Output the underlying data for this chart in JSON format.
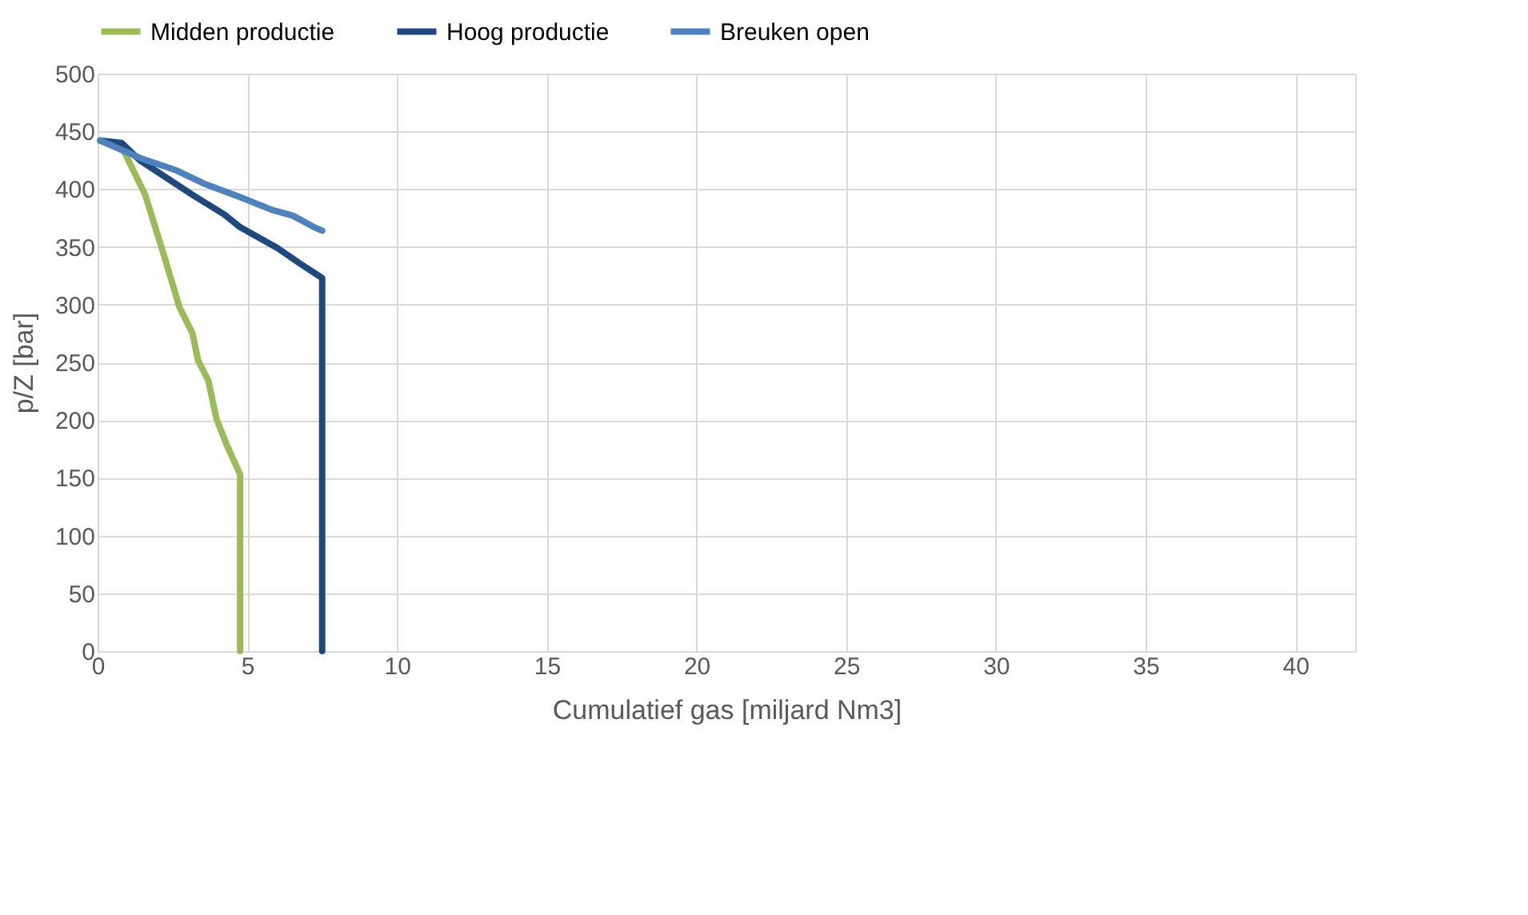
{
  "chart_data": {
    "type": "line",
    "xlabel": "Cumulatief gas [miljard Nm3]",
    "ylabel": "p/Z [bar]",
    "xlim": [
      0,
      42
    ],
    "xticks": [
      0,
      5,
      10,
      15,
      20,
      25,
      30,
      35,
      40
    ],
    "ylim": [
      0,
      500
    ],
    "yticks": [
      0,
      50,
      100,
      150,
      200,
      250,
      300,
      350,
      400,
      450,
      500
    ],
    "grid": true,
    "legend": "top",
    "marker": "none",
    "line_style": "solid",
    "series": [
      {
        "name": "Midden productie",
        "color": "#9bbb59",
        "x": [
          0.09,
          0.8,
          1.59,
          2.2,
          2.73,
          3.17,
          3.35,
          3.7,
          3.97,
          4.32,
          4.76,
          4.76
        ],
        "values": [
          442,
          437,
          395,
          344,
          298,
          275,
          252,
          234,
          201,
          178,
          153,
          0
        ]
      },
      {
        "name": "Hoog productie",
        "color": "#1f497d",
        "x": [
          0.09,
          0.8,
          1.41,
          3.17,
          4.23,
          4.76,
          6.0,
          6.79,
          7.5,
          7.5
        ],
        "values": [
          442,
          440,
          425,
          395,
          378,
          367,
          349,
          335,
          323,
          0
        ]
      },
      {
        "name": "Breuken open",
        "color": "#4f81bd",
        "x": [
          0.09,
          1.41,
          2.65,
          3.53,
          4.76,
          5.82,
          6.52,
          7.23,
          7.5
        ],
        "values": [
          442,
          427,
          416,
          405,
          393,
          382,
          377,
          367,
          364
        ]
      }
    ]
  }
}
